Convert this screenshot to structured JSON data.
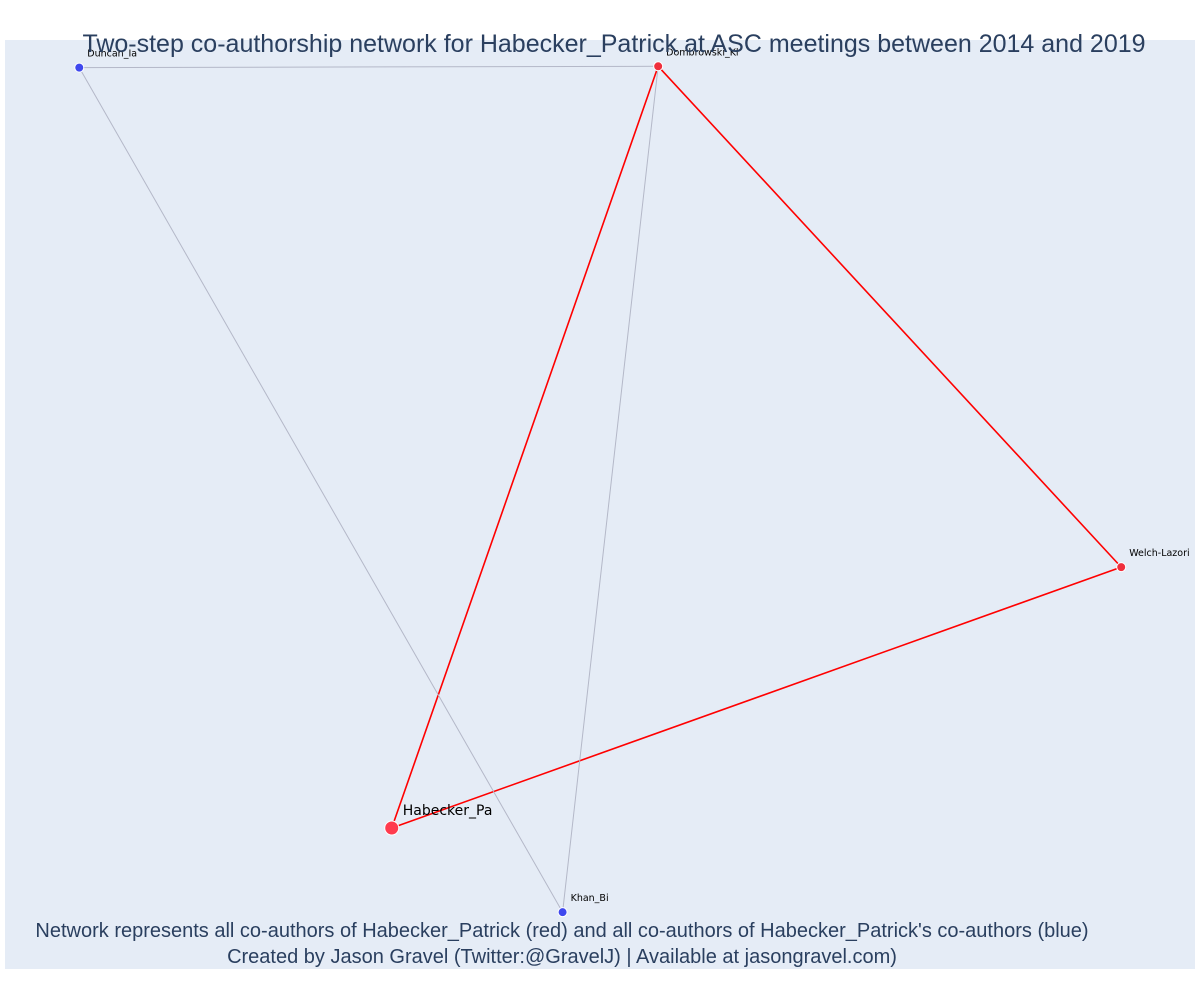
{
  "title": "Two-step co-authorship network for Habecker_Patrick at ASC meetings between 2014 and 2019",
  "footer": {
    "line1": "Network represents all co-authors of Habecker_Patrick (red) and all co-authors of Habecker_Patrick's co-authors (blue)",
    "line2": "Created by Jason Gravel (Twitter:@GravelJ) | Available at jasongravel.com)"
  },
  "colors": {
    "background": "#e5ecf6",
    "text": "#2a3f5f",
    "ego_node": "#ff3b4e",
    "coauthor_node": "#ef2f3c",
    "second_step_node": "#3f48ee",
    "node_outline": "#ffffff",
    "direct_edge": "#ff0000",
    "indirect_edge": "#b4b8c8"
  },
  "chart_data": {
    "type": "network",
    "nodes": [
      {
        "id": "Habecker_Pa",
        "label": "Habecker_Pa",
        "group": "ego",
        "x": 0.3235,
        "y": 0.143
      },
      {
        "id": "Dombrowski_Kl",
        "label": "Dombrowski_Kl",
        "group": "coauthor",
        "x": 0.5493,
        "y": 0.981
      },
      {
        "id": "Welch-Lazoritz",
        "label": "Welch-Lazori",
        "group": "coauthor",
        "x": 0.9417,
        "y": 0.43
      },
      {
        "id": "Duncan_Ia",
        "label": "Duncan_Ia",
        "group": "second_step",
        "x": 0.0587,
        "y": 0.9795
      },
      {
        "id": "Khan_Bi",
        "label": "Khan_Bi",
        "group": "second_step",
        "x": 0.4683,
        "y": 0.0504
      }
    ],
    "edges": [
      {
        "source": "Habecker_Pa",
        "target": "Dombrowski_Kl",
        "type": "direct"
      },
      {
        "source": "Habecker_Pa",
        "target": "Welch-Lazoritz",
        "type": "direct"
      },
      {
        "source": "Dombrowski_Kl",
        "target": "Welch-Lazoritz",
        "type": "direct"
      },
      {
        "source": "Duncan_Ia",
        "target": "Dombrowski_Kl",
        "type": "indirect"
      },
      {
        "source": "Duncan_Ia",
        "target": "Khan_Bi",
        "type": "indirect"
      },
      {
        "source": "Dombrowski_Kl",
        "target": "Khan_Bi",
        "type": "indirect"
      }
    ]
  }
}
